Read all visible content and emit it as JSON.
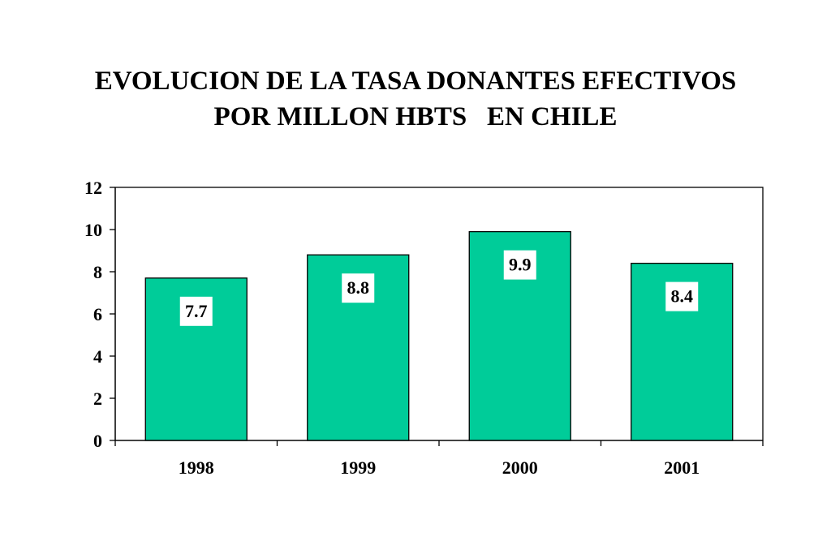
{
  "chart_data": {
    "type": "bar",
    "title_lines": [
      "EVOLUCION DE LA TASA DONANTES EFECTIVOS",
      "POR MILLON HBTS   EN CHILE"
    ],
    "categories": [
      "1998",
      "1999",
      "2000",
      "2001"
    ],
    "values": [
      7.7,
      8.8,
      9.9,
      8.4
    ],
    "data_labels": [
      "7.7",
      "8.8",
      "9.9",
      "8.4"
    ],
    "ylim": [
      0,
      12
    ],
    "yticks": [
      0,
      2,
      4,
      6,
      8,
      10,
      12
    ],
    "ytick_labels": [
      "0",
      "2",
      "4",
      "6",
      "8",
      "10",
      "12"
    ],
    "grid": false,
    "legend": "none",
    "colors": {
      "bar": "#00cc99",
      "label_box": "#ffffff",
      "axis": "#000000"
    }
  }
}
